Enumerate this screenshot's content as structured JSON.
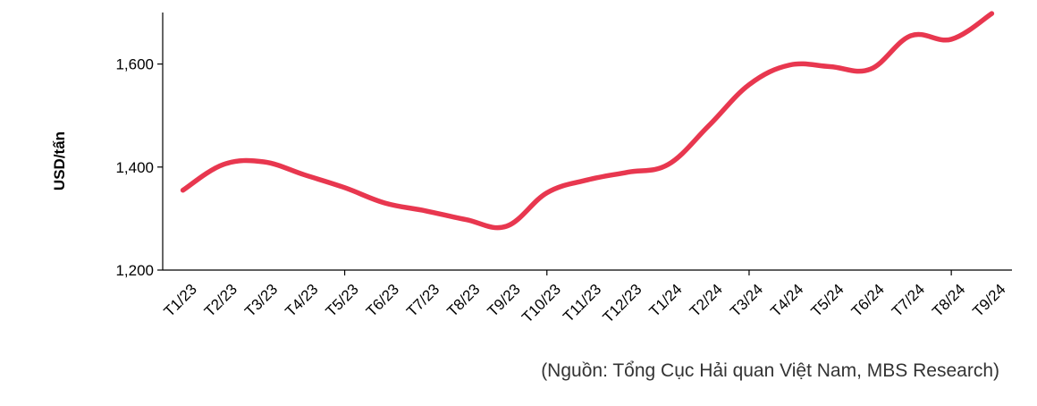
{
  "chart_data": {
    "type": "line",
    "ylabel": "USD/tấn",
    "ylim": [
      1200,
      1700
    ],
    "yticks": [
      1200,
      1400,
      1600
    ],
    "ytick_labels": [
      "1,200",
      "1,400",
      "1,600"
    ],
    "grid": false,
    "categories": [
      "T1/23",
      "T2/23",
      "T3/23",
      "T4/23",
      "T5/23",
      "T6/23",
      "T7/23",
      "T8/23",
      "T9/23",
      "T10/23",
      "T11/23",
      "T12/23",
      "T1/24",
      "T2/24",
      "T3/24",
      "T4/24",
      "T5/24",
      "T6/24",
      "T7/24",
      "T8/24",
      "T9/24"
    ],
    "series": [
      {
        "values": [
          1355,
          1405,
          1410,
          1385,
          1360,
          1330,
          1315,
          1298,
          1285,
          1350,
          1375,
          1390,
          1405,
          1480,
          1560,
          1598,
          1595,
          1590,
          1655,
          1648,
          1698
        ],
        "color": "#E8374F"
      }
    ]
  },
  "source_note": "(Nguồn: Tổng Cục Hải quan Việt Nam, MBS Research)"
}
